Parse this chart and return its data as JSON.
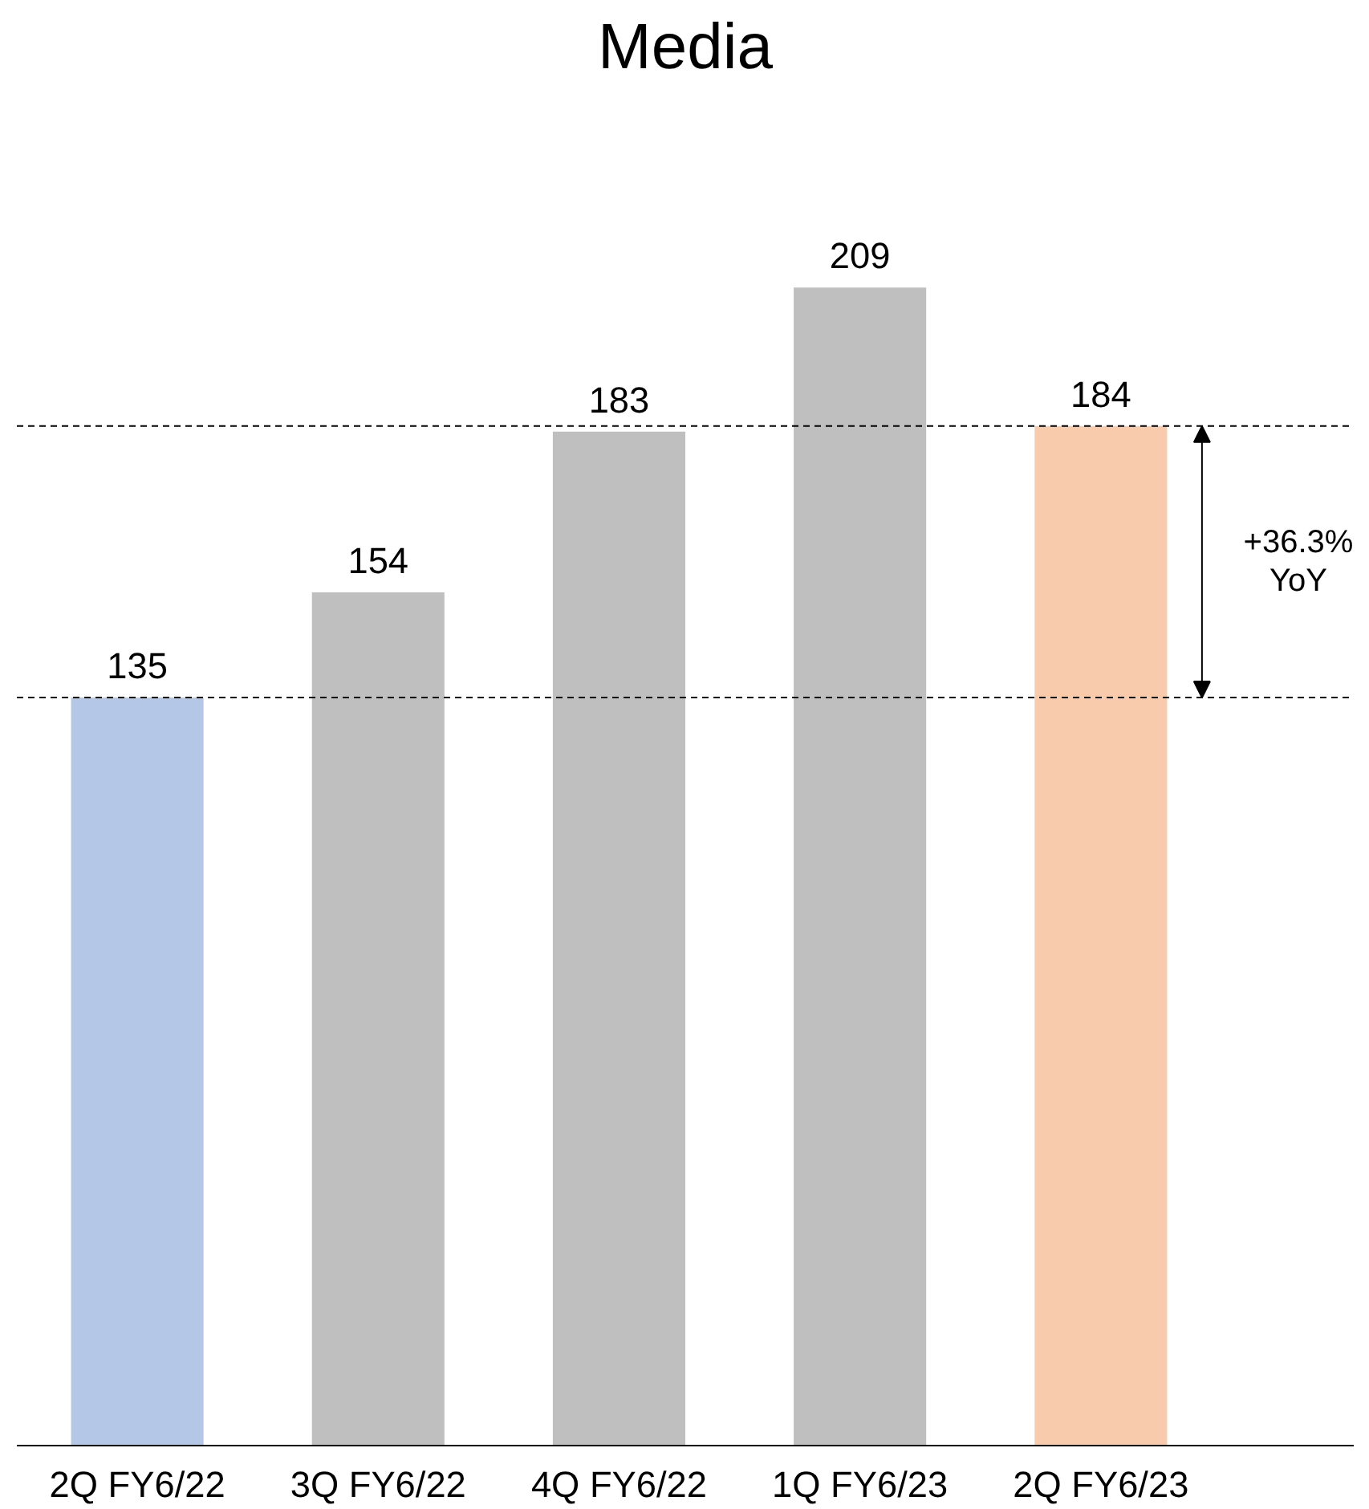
{
  "chart_data": {
    "type": "bar",
    "title": "Media",
    "categories": [
      "2Q FY6/22",
      "3Q FY6/22",
      "4Q FY6/22",
      "1Q FY6/23",
      "2Q FY6/23"
    ],
    "values": [
      135,
      154,
      183,
      209,
      184
    ],
    "colors": [
      "#b4c7e7",
      "#bfbfbf",
      "#bfbfbf",
      "#bfbfbf",
      "#f8cbad"
    ],
    "data_labels": true,
    "ref_lines": [
      {
        "axis": "y",
        "value": 135,
        "line_style": "dashed",
        "color": "#000000"
      },
      {
        "axis": "y",
        "value": 184,
        "line_style": "dashed",
        "color": "#000000"
      }
    ],
    "annotations": [
      "+36.3%\nYoY"
    ],
    "grid": false
  }
}
